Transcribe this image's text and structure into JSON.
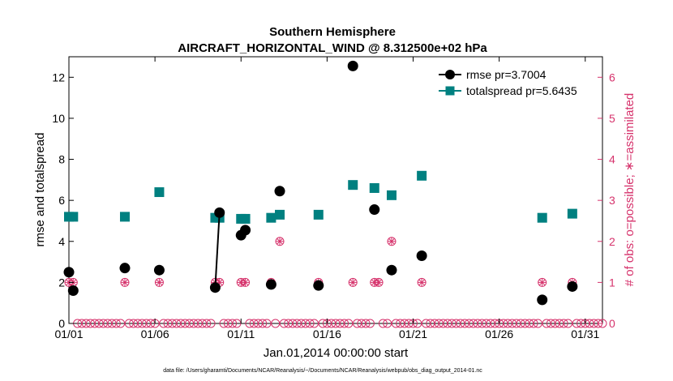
{
  "colors": {
    "rmse": "#000000",
    "spread": "#008080",
    "obs": "#d6336c",
    "axis": "#000000"
  },
  "chart_data": {
    "type": "line",
    "title": "Southern Hemisphere",
    "subtitle": "AIRCRAFT_HORIZONTAL_WIND @ 8.312500e+02 hPa",
    "xlabel": "Jan.01,2014 00:00:00 start",
    "ylabel": "rmse and totalspread",
    "y2label": "# of obs: o=possible; ∗=assimilated",
    "footnote": "data file: /Users/gharamti/Documents/NCAR/Reanalysis/~/Documents/NCAR/Reanalysis/webpub/obs_diag_output_2014-01.nc",
    "xlim": [
      1,
      32
    ],
    "ylim": [
      0,
      13
    ],
    "y2lim": [
      0,
      6.5
    ],
    "x_ticks": [
      1,
      6,
      11,
      16,
      21,
      26,
      31
    ],
    "x_tick_labels": [
      "01/01",
      "01/06",
      "01/11",
      "01/16",
      "01/21",
      "01/26",
      "01/31"
    ],
    "y_ticks": [
      0,
      2,
      4,
      6,
      8,
      10,
      12
    ],
    "y_tick_labels": [
      "0",
      "2",
      "4",
      "6",
      "8",
      "10",
      "12"
    ],
    "y2_ticks": [
      0,
      1,
      2,
      3,
      4,
      5,
      6
    ],
    "y2_tick_labels": [
      "0",
      "1",
      "2",
      "3",
      "4",
      "5",
      "6"
    ],
    "legend": [
      "rmse pr=3.7004",
      "totalspread pr=5.6435"
    ],
    "legend_position": "top-right",
    "series": [
      {
        "name": "rmse pr=3.7004",
        "points": [
          [
            1.0,
            2.5
          ],
          [
            1.25,
            1.6
          ],
          [
            4.25,
            2.7
          ],
          [
            6.25,
            2.6
          ],
          [
            9.5,
            1.75
          ],
          [
            9.75,
            5.4
          ],
          [
            11.0,
            4.3
          ],
          [
            11.25,
            4.55
          ],
          [
            12.75,
            1.9
          ],
          [
            13.25,
            6.45
          ],
          [
            15.5,
            1.85
          ],
          [
            17.5,
            12.55
          ],
          [
            18.75,
            5.55
          ],
          [
            19.75,
            2.6
          ],
          [
            21.5,
            3.3
          ],
          [
            28.5,
            1.15
          ],
          [
            30.25,
            1.8
          ]
        ],
        "segments": [
          [
            4,
            5
          ]
        ]
      },
      {
        "name": "totalspread pr=5.6435",
        "points": [
          [
            1.0,
            5.2
          ],
          [
            1.25,
            5.2
          ],
          [
            4.25,
            5.2
          ],
          [
            6.25,
            6.4
          ],
          [
            9.5,
            5.15
          ],
          [
            9.75,
            5.15
          ],
          [
            11.0,
            5.1
          ],
          [
            11.25,
            5.1
          ],
          [
            12.75,
            5.15
          ],
          [
            13.25,
            5.3
          ],
          [
            15.5,
            5.3
          ],
          [
            17.5,
            6.75
          ],
          [
            18.75,
            6.6
          ],
          [
            19.75,
            6.25
          ],
          [
            21.5,
            7.2
          ],
          [
            28.5,
            5.15
          ],
          [
            30.25,
            5.35
          ]
        ]
      },
      {
        "name": "obs possible",
        "axis": "right",
        "x_start": 1.0,
        "x_step": 0.25,
        "x_end": 32.0,
        "nonzero": [
          [
            1.0,
            1
          ],
          [
            1.25,
            1
          ],
          [
            4.25,
            1
          ],
          [
            6.25,
            1
          ],
          [
            9.5,
            1
          ],
          [
            9.75,
            1
          ],
          [
            11.0,
            1
          ],
          [
            11.25,
            1
          ],
          [
            12.75,
            1
          ],
          [
            13.25,
            2
          ],
          [
            15.5,
            1
          ],
          [
            17.5,
            1
          ],
          [
            18.75,
            1
          ],
          [
            19.0,
            1
          ],
          [
            19.75,
            2
          ],
          [
            21.5,
            1
          ],
          [
            28.5,
            1
          ],
          [
            30.25,
            1
          ]
        ]
      },
      {
        "name": "obs assimilated",
        "axis": "right",
        "points": [
          [
            1.0,
            1
          ],
          [
            1.25,
            1
          ],
          [
            4.25,
            1
          ],
          [
            6.25,
            1
          ],
          [
            9.5,
            1
          ],
          [
            9.75,
            1
          ],
          [
            11.0,
            1
          ],
          [
            11.25,
            1
          ],
          [
            12.75,
            1
          ],
          [
            13.25,
            2
          ],
          [
            15.5,
            1
          ],
          [
            17.5,
            1
          ],
          [
            18.75,
            1
          ],
          [
            19.0,
            1
          ],
          [
            19.75,
            2
          ],
          [
            21.5,
            1
          ],
          [
            28.5,
            1
          ],
          [
            30.25,
            1
          ]
        ]
      }
    ]
  }
}
